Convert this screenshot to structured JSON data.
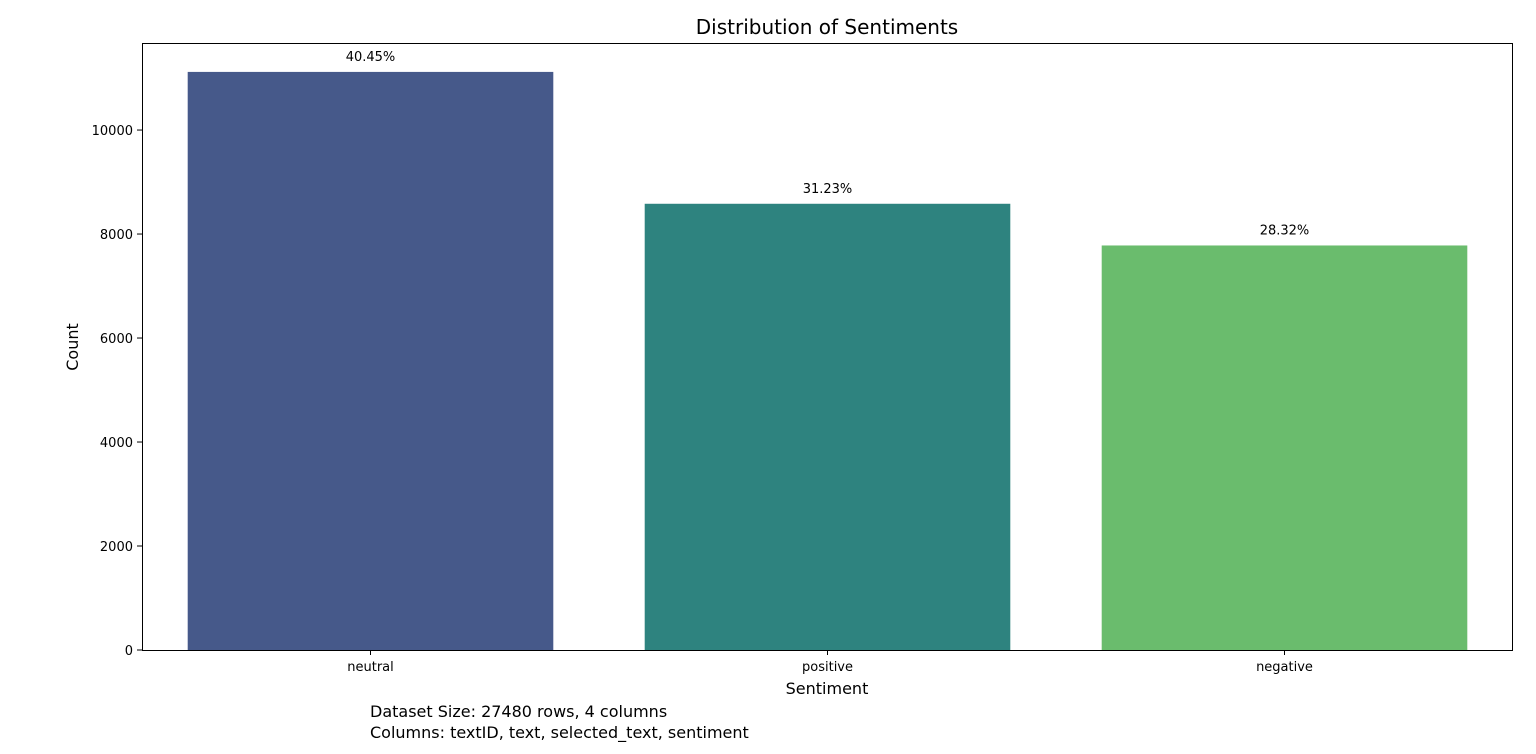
{
  "chart_data": {
    "type": "bar",
    "title": "Distribution of Sentiments",
    "xlabel": "Sentiment",
    "ylabel": "Count",
    "categories": [
      "neutral",
      "positive",
      "negative"
    ],
    "values": [
      11118,
      8582,
      7780
    ],
    "percent_labels": [
      "40.45%",
      "31.23%",
      "28.32%"
    ],
    "colors": [
      "#46598a",
      "#2e837f",
      "#6abc6d"
    ],
    "ylim": [
      0,
      11674
    ],
    "yticks": [
      0,
      2000,
      4000,
      6000,
      8000,
      10000
    ],
    "ytick_labels": [
      "0",
      "2000",
      "4000",
      "6000",
      "8000",
      "10000"
    ],
    "grid": false,
    "legend": "none"
  },
  "footnote": {
    "dataset_size": "Dataset Size: 27480 rows, 4 columns",
    "columns": "Columns: textID, text, selected_text, sentiment"
  }
}
